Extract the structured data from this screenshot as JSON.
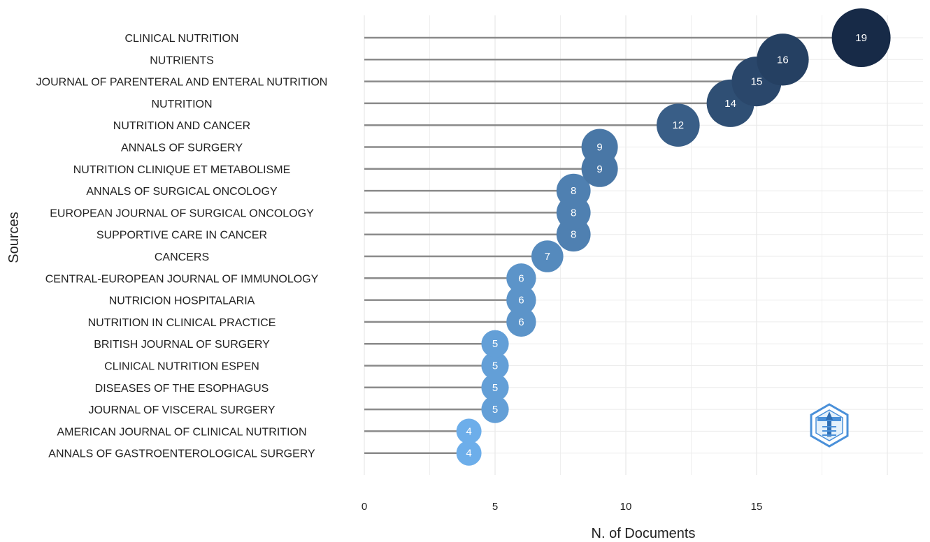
{
  "chart_data": {
    "type": "scatter",
    "subtype": "lollipop-bubble",
    "title": "",
    "xlabel": "N. of Documents",
    "ylabel": "Sources",
    "xlim": [
      0,
      21.5
    ],
    "xticks": [
      0,
      5,
      10,
      15
    ],
    "grid": true,
    "categories": [
      "CLINICAL NUTRITION",
      "NUTRIENTS",
      "JOURNAL OF PARENTERAL AND ENTERAL NUTRITION",
      "NUTRITION",
      "NUTRITION AND CANCER",
      "ANNALS OF SURGERY",
      "NUTRITION CLINIQUE ET METABOLISME",
      "ANNALS OF SURGICAL ONCOLOGY",
      "EUROPEAN JOURNAL OF SURGICAL ONCOLOGY",
      "SUPPORTIVE CARE IN CANCER",
      "CANCERS",
      "CENTRAL-EUROPEAN JOURNAL OF IMMUNOLOGY",
      "NUTRICION HOSPITALARIA",
      "NUTRITION IN CLINICAL PRACTICE",
      "BRITISH JOURNAL OF SURGERY",
      "CLINICAL NUTRITION ESPEN",
      "DISEASES OF THE ESOPHAGUS",
      "JOURNAL OF VISCERAL SURGERY",
      "AMERICAN JOURNAL OF CLINICAL NUTRITION",
      "ANNALS OF GASTROENTEROLOGICAL SURGERY"
    ],
    "values": [
      19,
      16,
      15,
      14,
      12,
      9,
      9,
      8,
      8,
      8,
      7,
      6,
      6,
      6,
      5,
      5,
      5,
      5,
      4,
      4
    ],
    "data_labels": [
      "19",
      "16",
      "15",
      "14",
      "12",
      "9",
      "9",
      "8",
      "8",
      "8",
      "7",
      "6",
      "6",
      "6",
      "5",
      "5",
      "5",
      "5",
      "4",
      "4"
    ],
    "colors": {
      "low": "#6daeea",
      "high": "#172a47",
      "stem": "#8a8a8a",
      "grid": "#ebebeb"
    }
  },
  "logo": {
    "icon": "bibliometrix-logo-icon"
  }
}
